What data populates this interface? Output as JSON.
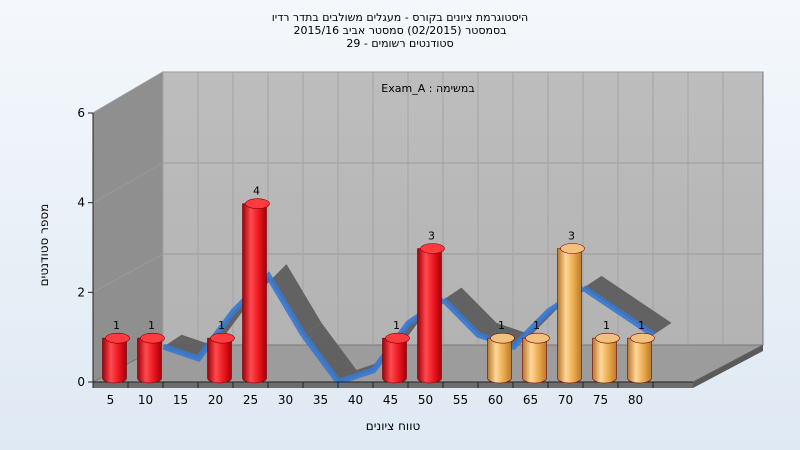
{
  "chart_data": {
    "type": "bar",
    "title_lines": [
      "היסטוגרמת ציונים בקורס - מעגלים משולבים בתדר רדיו",
      "בסמסטר (02/2015) סמסטר אביב 2015/16",
      "סטודנטים רשומים - 29"
    ],
    "legend": "Exam_A : במשימה",
    "xlabel": "טווח ציונים",
    "ylabel": "מספר סטודנטים",
    "ylim": [
      0,
      6
    ],
    "y_ticks": [
      0,
      2,
      4,
      6
    ],
    "categories": [
      5,
      10,
      15,
      20,
      25,
      30,
      35,
      40,
      45,
      50,
      55,
      60,
      65,
      70,
      75,
      80
    ],
    "values": [
      1,
      1,
      null,
      1,
      4,
      null,
      null,
      null,
      1,
      3,
      null,
      1,
      1,
      3,
      1,
      1
    ],
    "bar_colors": [
      "red",
      "red",
      null,
      "red",
      "red",
      null,
      null,
      null,
      "red",
      "red",
      null,
      "orange",
      "orange",
      "orange",
      "orange",
      "orange"
    ],
    "colors": {
      "red": "#e8141c",
      "orange": "#e8a648",
      "ribbon_blue": "#3a78d0",
      "ribbon_gray": "#5e5e5e",
      "wall": "#b9b9b9",
      "side_wall": "#8c8c8c",
      "floor": "#9a9a9a"
    },
    "grid": true,
    "legend_position": "top-center"
  }
}
